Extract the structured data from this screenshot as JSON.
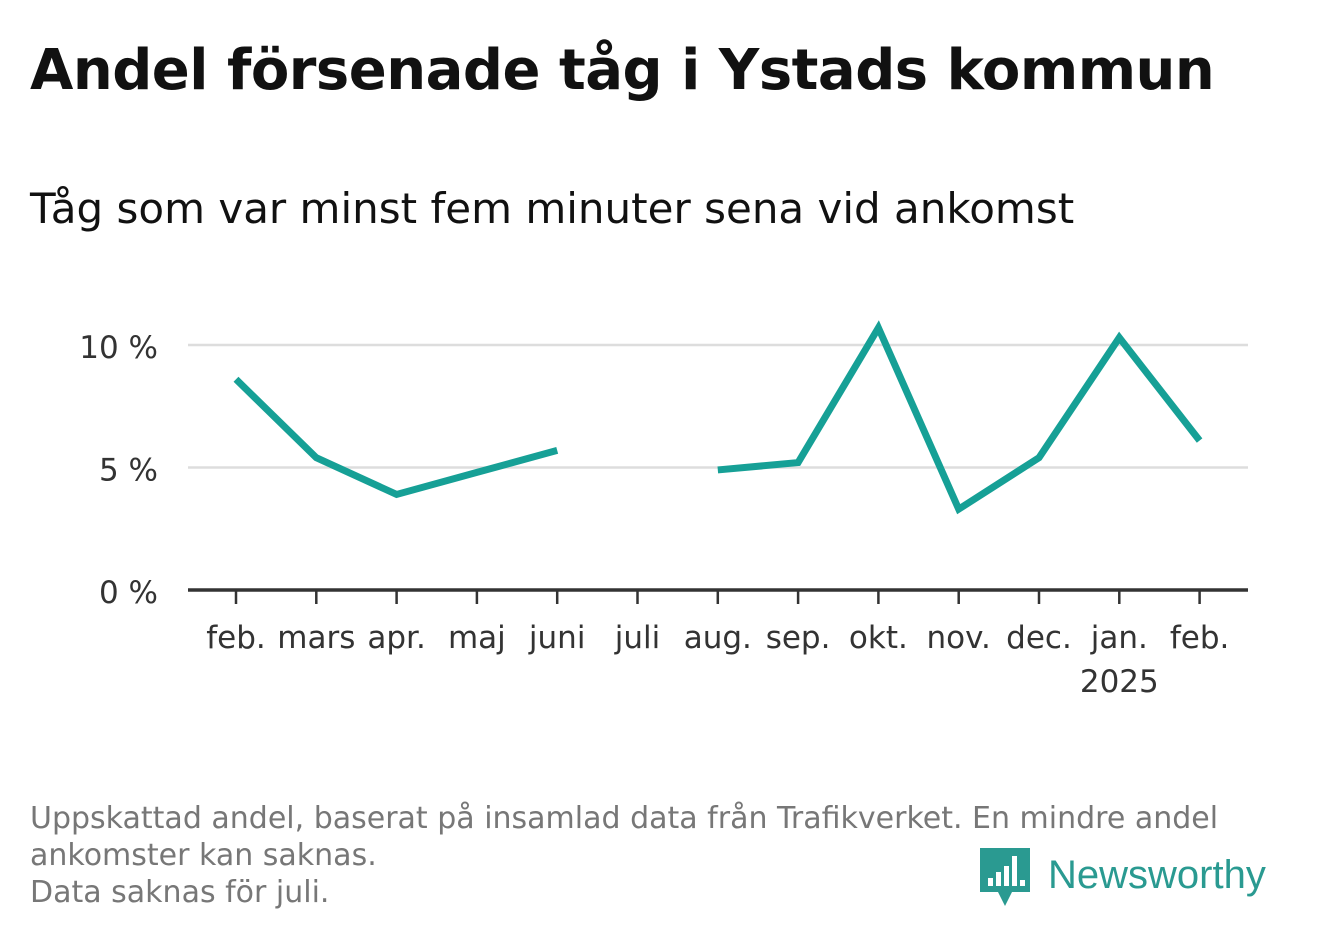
{
  "title": "Andel försenade tåg i Ystads kommun",
  "subtitle": "Tåg som var minst fem minuter sena vid ankomst",
  "footnote": {
    "line1": "Uppskattad andel, baserat på insamlad data från Trafikverket. En mindre andel",
    "line2": "ankomster kan saknas.",
    "line3": "Data saknas för juli."
  },
  "logo": {
    "text": "Newsworthy",
    "icon": "newsworthy-bar-chart-icon"
  },
  "colors": {
    "line": "#16a096",
    "grid": "#dddddd",
    "axis": "#333333",
    "text": "#333333"
  },
  "chart_data": {
    "type": "line",
    "categories": [
      "feb.",
      "mars",
      "apr.",
      "maj",
      "juni",
      "juli",
      "aug.",
      "sep.",
      "okt.",
      "nov.",
      "dec.",
      "jan.",
      "feb."
    ],
    "year_label": {
      "text": "2025",
      "category_index": 11
    },
    "series": [
      {
        "values": [
          8.6,
          5.4,
          3.9,
          4.8,
          5.7,
          null,
          4.9,
          5.2,
          10.7,
          3.3,
          5.4,
          10.3,
          6.1
        ]
      }
    ],
    "ylim": [
      0,
      11
    ],
    "yticks": [
      0,
      5,
      10
    ],
    "ytick_labels": [
      "0 %",
      "5 %",
      "10 %"
    ],
    "grid": true,
    "xlabel": "",
    "ylabel": ""
  }
}
